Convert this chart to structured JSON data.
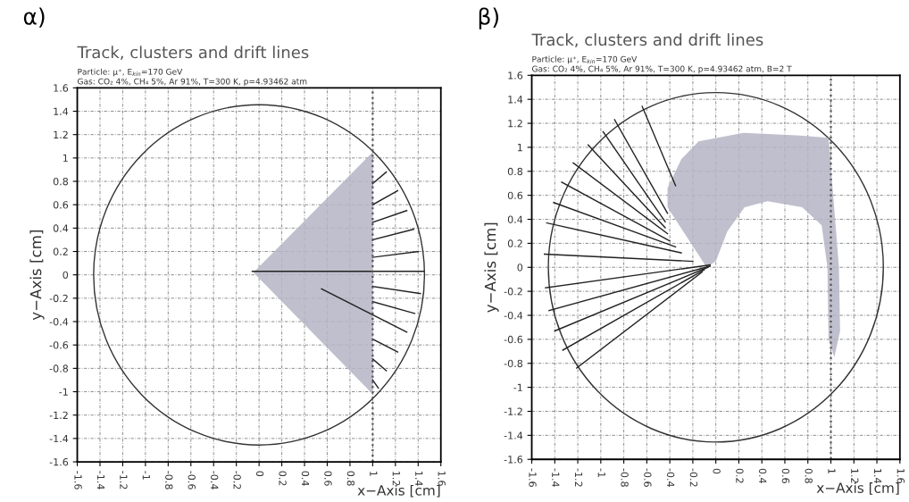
{
  "chart_data": [
    {
      "type": "line",
      "title": "Track, clusters and drift lines",
      "subtitle": "Particle: μ⁺, E$_{kin}$=170 GeV\nGas: CO₂ 4%, CH₄ 5%, Ar 91%, T=300 K, p=4.93462 atm",
      "xlabel": "x−Axis [cm]",
      "ylabel": "y−Axis [cm]",
      "annotations": [
        "α)"
      ],
      "xlim": [
        -1.6,
        1.6
      ],
      "ylim": [
        -1.6,
        1.6
      ],
      "xticks": [
        -1.6,
        -1.4,
        -1.2,
        -1,
        -0.8,
        -0.6,
        -0.4,
        -0.2,
        0,
        0.2,
        0.4,
        0.6,
        0.8,
        1,
        1.2,
        1.4,
        1.6
      ],
      "yticks": [
        -1.6,
        -1.4,
        -1.2,
        -1,
        -0.8,
        -0.6,
        -0.4,
        -0.2,
        0,
        0.2,
        0.4,
        0.6,
        0.8,
        1,
        1.2,
        1.4,
        1.6
      ],
      "grid": true,
      "ref_lines": [
        {
          "axis": "x",
          "value": 1,
          "color": "#555555",
          "line_style": "dotted"
        }
      ],
      "series": [
        {
          "type": "area",
          "color": "#b4b4c4",
          "x": [
            -0.05,
            1.0,
            1.0
          ],
          "values": [
            0.02,
            1.05,
            -1.02
          ]
        },
        {
          "color": "#222222",
          "x": [
            1,
            1.12
          ],
          "values": [
            0.78,
            0.88
          ]
        },
        {
          "color": "#222222",
          "x": [
            1,
            1.22
          ],
          "values": [
            0.6,
            0.72
          ]
        },
        {
          "color": "#222222",
          "x": [
            1,
            1.3
          ],
          "values": [
            0.45,
            0.55
          ]
        },
        {
          "color": "#222222",
          "x": [
            1,
            1.36
          ],
          "values": [
            0.3,
            0.39
          ]
        },
        {
          "color": "#222222",
          "x": [
            1,
            1.4
          ],
          "values": [
            0.15,
            0.2
          ]
        },
        {
          "color": "#222222",
          "x": [
            -0.06,
            1.45
          ],
          "values": [
            0.03,
            0.03
          ]
        },
        {
          "color": "#222222",
          "x": [
            1,
            1.42
          ],
          "values": [
            -0.1,
            -0.16
          ]
        },
        {
          "color": "#222222",
          "x": [
            1,
            1.37
          ],
          "values": [
            -0.23,
            -0.33
          ]
        },
        {
          "color": "#222222",
          "x": [
            0.55,
            1.3
          ],
          "values": [
            -0.12,
            -0.49
          ]
        },
        {
          "color": "#222222",
          "x": [
            1,
            1.22
          ],
          "values": [
            -0.55,
            -0.66
          ]
        },
        {
          "color": "#222222",
          "x": [
            1,
            1.12
          ],
          "values": [
            -0.72,
            -0.82
          ]
        },
        {
          "color": "#222222",
          "x": [
            1,
            1.05
          ],
          "values": [
            -0.9,
            -0.97
          ]
        }
      ]
    },
    {
      "type": "line",
      "title": "Track, clusters and drift lines",
      "subtitle": "Particle: μ⁺, E$_{kin}$=170 GeV\nGas: CO₂ 4%, CH₄ 5%, Ar 91%, T=300 K, p=4.93462 atm, B=2 T",
      "xlabel": "x−Axis [cm]",
      "ylabel": "y−Axis [cm]",
      "annotations": [
        "β)"
      ],
      "xlim": [
        -1.6,
        1.6
      ],
      "ylim": [
        -1.6,
        1.6
      ],
      "xticks": [
        -1.6,
        -1.4,
        -1.2,
        -1,
        -0.8,
        -0.6,
        -0.4,
        -0.2,
        0,
        0.2,
        0.4,
        0.6,
        0.8,
        1,
        1.2,
        1.4,
        1.6
      ],
      "yticks": [
        -1.6,
        -1.4,
        -1.2,
        -1,
        -0.8,
        -0.6,
        -0.4,
        -0.2,
        0,
        0.2,
        0.4,
        0.6,
        0.8,
        1,
        1.2,
        1.4,
        1.6
      ],
      "grid": true,
      "ref_lines": [
        {
          "axis": "x",
          "value": 1,
          "color": "#555555",
          "line_style": "dotted"
        }
      ],
      "series": [
        {
          "type": "area",
          "color": "#b4b4c4",
          "x": [
            -0.08,
            -0.42,
            -0.42,
            -0.3,
            -0.15,
            0.24,
            0.7,
            0.98,
            1.02,
            1.07,
            1.08,
            1.03,
            0.98,
            0.97,
            0.92,
            0.75,
            0.45,
            0.25,
            0.1,
            0.0
          ],
          "values": [
            0.0,
            0.5,
            0.66,
            0.9,
            1.05,
            1.12,
            1.1,
            1.08,
            0.6,
            0.0,
            -0.53,
            -0.75,
            -0.6,
            0.0,
            0.35,
            0.5,
            0.55,
            0.5,
            0.3,
            0.05
          ]
        },
        {
          "color": "#222222",
          "x": [
            -0.64,
            -0.35
          ],
          "values": [
            1.34,
            0.68
          ]
        },
        {
          "color": "#222222",
          "x": [
            -0.88,
            -0.42
          ],
          "values": [
            1.23,
            0.45
          ]
        },
        {
          "color": "#222222",
          "x": [
            -0.98,
            -0.44
          ],
          "values": [
            1.13,
            0.38
          ]
        },
        {
          "color": "#222222",
          "x": [
            -1.11,
            -0.44
          ],
          "values": [
            1.02,
            0.33
          ]
        },
        {
          "color": "#222222",
          "x": [
            -1.24,
            -0.42
          ],
          "values": [
            0.87,
            0.28
          ]
        },
        {
          "color": "#222222",
          "x": [
            -1.34,
            -0.4
          ],
          "values": [
            0.71,
            0.22
          ]
        },
        {
          "color": "#222222",
          "x": [
            -1.41,
            -0.35
          ],
          "values": [
            0.54,
            0.17
          ]
        },
        {
          "color": "#222222",
          "x": [
            -1.47,
            -0.3
          ],
          "values": [
            0.37,
            0.12
          ]
        },
        {
          "color": "#222222",
          "x": [
            -1.49,
            -0.2
          ],
          "values": [
            0.11,
            0.05
          ]
        },
        {
          "color": "#222222",
          "x": [
            -1.48,
            -0.05
          ],
          "values": [
            -0.17,
            0.02
          ]
        },
        {
          "color": "#222222",
          "x": [
            -1.45,
            -0.05
          ],
          "values": [
            -0.36,
            0.01
          ]
        },
        {
          "color": "#222222",
          "x": [
            -1.4,
            -0.07
          ],
          "values": [
            -0.53,
            0.0
          ]
        },
        {
          "color": "#222222",
          "x": [
            -1.33,
            -0.1
          ],
          "values": [
            -0.69,
            -0.02
          ]
        },
        {
          "color": "#222222",
          "x": [
            -1.21,
            -0.12
          ],
          "values": [
            -0.84,
            -0.04
          ]
        }
      ]
    }
  ]
}
